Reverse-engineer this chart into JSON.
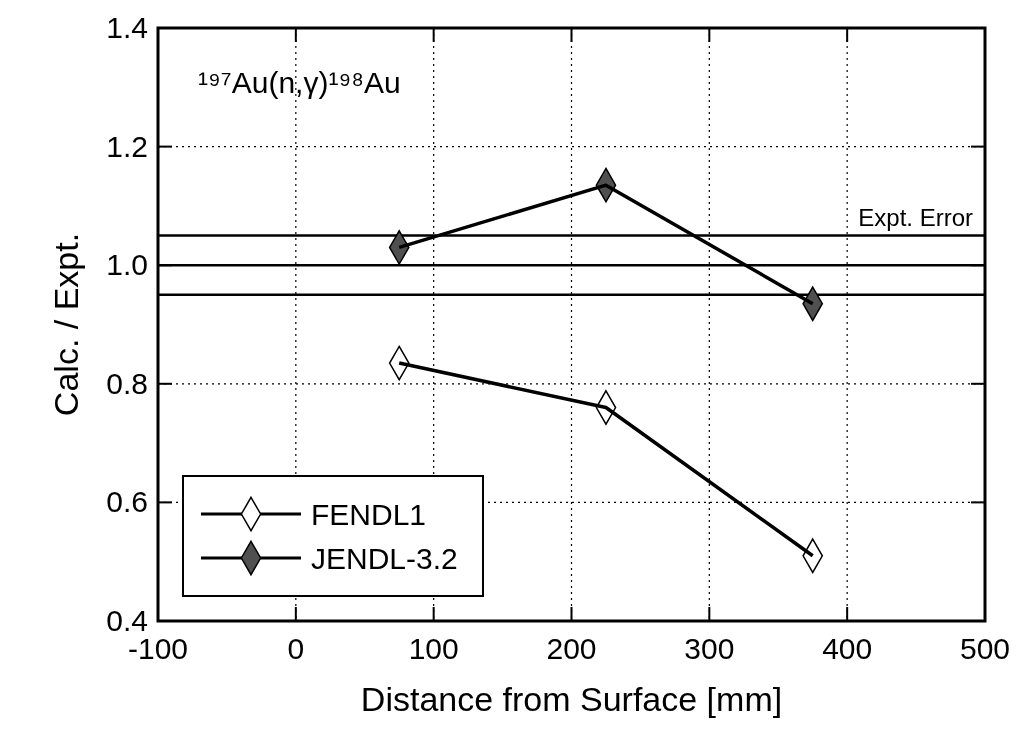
{
  "chart_data": {
    "type": "line",
    "title": "¹⁹⁷Au(n,γ)¹⁹⁸Au",
    "xlabel": "Distance from Surface [mm]",
    "ylabel": "Calc. / Expt.",
    "x": [
      75,
      225,
      375
    ],
    "series": [
      {
        "name": "FENDL1",
        "color": "#000000",
        "values": [
          0.835,
          0.76,
          0.51
        ]
      },
      {
        "name": "JENDL-3.2",
        "color": "#000000",
        "values": [
          1.03,
          1.135,
          0.935
        ]
      }
    ],
    "xlim": [
      -100,
      500
    ],
    "xticks": [
      -100,
      0,
      100,
      200,
      300,
      400,
      500
    ],
    "ylim": [
      0.4,
      1.4
    ],
    "yticks": [
      0.4,
      0.6,
      0.8,
      {
        "value": 1,
        "label": "1.0"
      },
      1.2,
      1.4
    ],
    "ref_lines": [
      {
        "axis": "y",
        "value": 1,
        "label": null
      },
      {
        "axis": "y",
        "value": 1.05,
        "label": "Expt. Error"
      },
      {
        "axis": "y",
        "value": 0.95,
        "label": null
      }
    ],
    "grid": true,
    "legend": "bottom left",
    "marker": "diamond",
    "line_style": "solid"
  }
}
